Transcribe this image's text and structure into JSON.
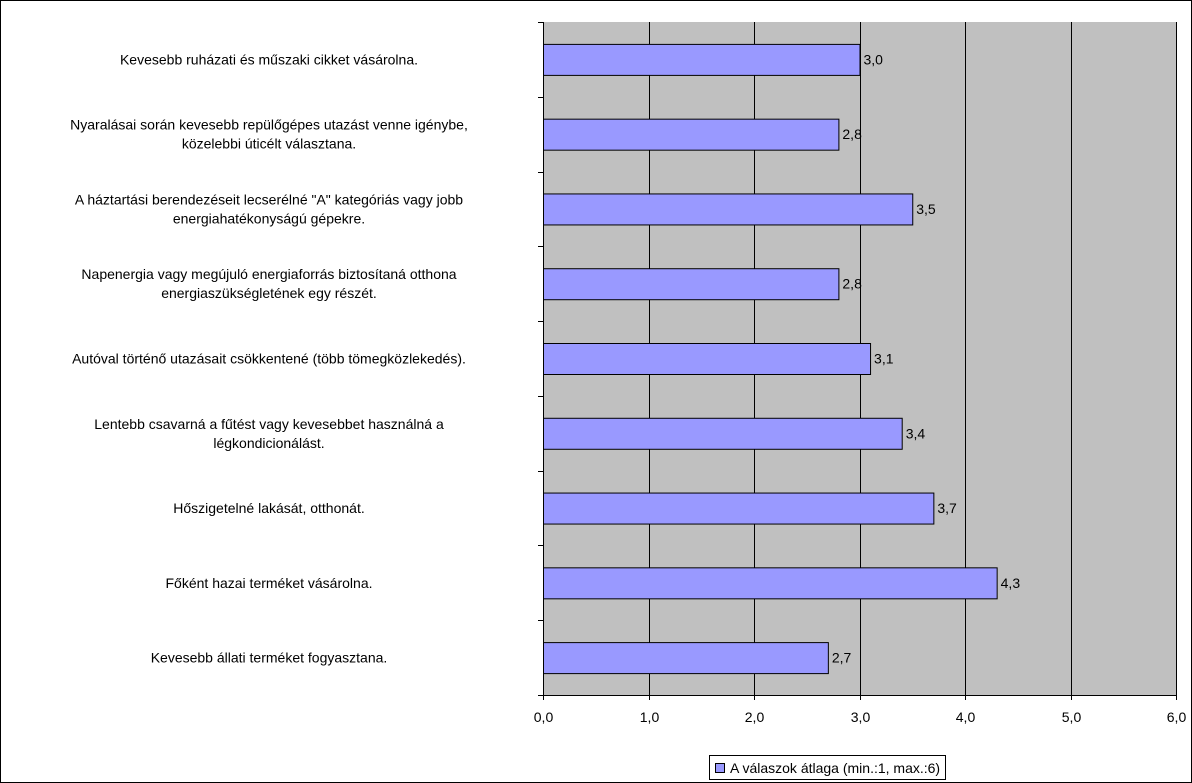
{
  "chart_data": {
    "type": "bar",
    "orientation": "horizontal",
    "categories": [
      [
        "Kevesebb ruházati és műszaki cikket vásárolna."
      ],
      [
        "Nyaralásai során kevesebb repülőgépes utazást venne igénybe,",
        "közelebbi úticélt választana."
      ],
      [
        "A háztartási berendezéseit lecserélné \"A\" kategóriás vagy jobb",
        "energiahatékonyságú gépekre."
      ],
      [
        "Napenergia vagy megújuló energiaforrás biztosítaná otthona",
        "energiaszükségletének egy részét."
      ],
      [
        "Autóval történő utazásait csökkentené (több tömegközlekedés)."
      ],
      [
        "Lentebb csavarná a fűtést vagy kevesebbet használná a",
        "légkondicionálást."
      ],
      [
        "Hőszigetelné lakását, otthonát."
      ],
      [
        "Főként hazai terméket vásárolna."
      ],
      [
        "Kevesebb állati terméket fogyasztana."
      ]
    ],
    "series": [
      {
        "name": "A válaszok átlaga (min.:1, max.:6)",
        "values": [
          3.0,
          2.8,
          3.5,
          2.8,
          3.1,
          3.4,
          3.7,
          4.3,
          2.7
        ],
        "labels": [
          "3,0",
          "2,8",
          "3,5",
          "2,8",
          "3,1",
          "3,4",
          "3,7",
          "4,3",
          "2,7"
        ],
        "color": "#9999ff"
      }
    ],
    "xlim": [
      0,
      6
    ],
    "ticks": [
      "0,0",
      "1,0",
      "2,0",
      "3,0",
      "4,0",
      "5,0",
      "6,0"
    ],
    "grid": true,
    "plot_background": "#c0c0c0",
    "legend_position": "bottom"
  }
}
